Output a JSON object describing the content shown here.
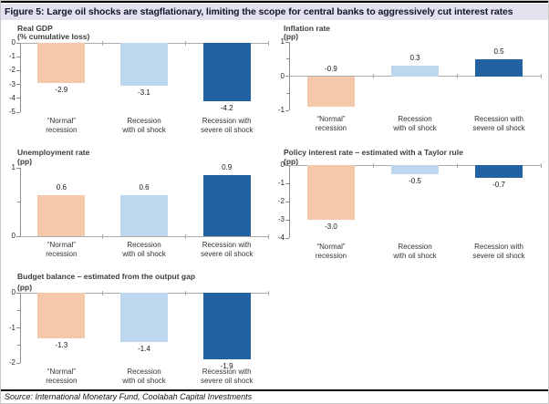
{
  "figure": {
    "title": "Figure 5: Large oil shocks are stagflationary, limiting the scope for central banks to aggressively cut interest rates",
    "source": "Source: International Monetary Fund, Coolabah Capital Investments"
  },
  "colors": {
    "normal_recession_bar": "#F5C8AC",
    "oil_shock_bar": "#BCD7EE",
    "severe_oil_shock_bar": "#2262A0",
    "series": [
      "#F5C8AC",
      "#BCD7EE",
      "#2262A0"
    ],
    "title_band_bg": "#E2E2EF",
    "axis_line": "#8C8C8C",
    "zero_line": "#ABABAB"
  },
  "chart_data": [
    {
      "id": "real-gdp",
      "type": "bar",
      "title": "Real GDP",
      "unit": "(% cumulative loss)",
      "categories": [
        [
          "“Normal”",
          "recession"
        ],
        [
          "Recession",
          "with oil shock"
        ],
        [
          "Recession with",
          "severe oil shock"
        ]
      ],
      "values": [
        -2.9,
        -3.1,
        -4.2
      ],
      "labels": [
        "-2.9",
        "-3.1",
        "-4.2"
      ],
      "ylim": [
        -5,
        0
      ],
      "yticks": [
        0,
        -1,
        -2,
        -3,
        -4,
        -5
      ],
      "minor_ticks": [],
      "label_pos": "below",
      "grid": false,
      "legend": "none"
    },
    {
      "id": "inflation",
      "type": "bar",
      "title": "Inflation rate",
      "unit": "(pp)",
      "categories": [
        [
          "“Normal”",
          "recession"
        ],
        [
          "Recession",
          "with oil shock"
        ],
        [
          "Recession with",
          "severe oil shock"
        ]
      ],
      "values": [
        -0.9,
        0.3,
        0.5
      ],
      "labels": [
        "-0.9",
        "0.3",
        "0.5"
      ],
      "ylim": [
        -1,
        1
      ],
      "yticks": [
        1,
        0,
        -1
      ],
      "minor_ticks": [
        0.5,
        -0.5
      ],
      "label_pos": "above",
      "grid": false,
      "legend": "none"
    },
    {
      "id": "unemployment",
      "type": "bar",
      "title": "Unemployment rate",
      "unit": "(pp)",
      "categories": [
        [
          "“Normal”",
          "recession"
        ],
        [
          "Recession",
          "with oil shock"
        ],
        [
          "Recession with",
          "severe oil shock"
        ]
      ],
      "values": [
        0.6,
        0.6,
        0.9
      ],
      "labels": [
        "0.6",
        "0.6",
        "0.9"
      ],
      "ylim": [
        0,
        1
      ],
      "yticks": [
        1,
        0
      ],
      "minor_ticks": [
        0.5
      ],
      "label_pos": "above",
      "grid": false,
      "legend": "none"
    },
    {
      "id": "policy-rate",
      "type": "bar",
      "title": "Policy interest rate – estimated with a Taylor rule",
      "unit": "(pp)",
      "categories": [
        [
          "“Normal”",
          "recession"
        ],
        [
          "Recession",
          "with oil shock"
        ],
        [
          "Recession with",
          "severe oil shock"
        ]
      ],
      "values": [
        -3.0,
        -0.5,
        -0.7
      ],
      "labels": [
        "-3.0",
        "-0.5",
        "-0.7"
      ],
      "ylim": [
        -4,
        0
      ],
      "yticks": [
        0,
        -1,
        -2,
        -3,
        -4
      ],
      "minor_ticks": [],
      "label_pos": "below",
      "grid": false,
      "legend": "none"
    },
    {
      "id": "budget-balance",
      "type": "bar",
      "title": "Budget balance – estimated from the output gap",
      "unit": "(pp)",
      "categories": [
        [
          "“Normal”",
          "recession"
        ],
        [
          "Recession",
          "with oil shock"
        ],
        [
          "Recession with",
          "severe oil shock"
        ]
      ],
      "values": [
        -1.3,
        -1.4,
        -1.9
      ],
      "labels": [
        "-1.3",
        "-1.4",
        "-1.9"
      ],
      "ylim": [
        -2,
        0
      ],
      "yticks": [
        0,
        -1,
        -2
      ],
      "minor_ticks": [
        -0.5,
        -1.5
      ],
      "label_pos": "below",
      "grid": false,
      "legend": "none"
    }
  ]
}
